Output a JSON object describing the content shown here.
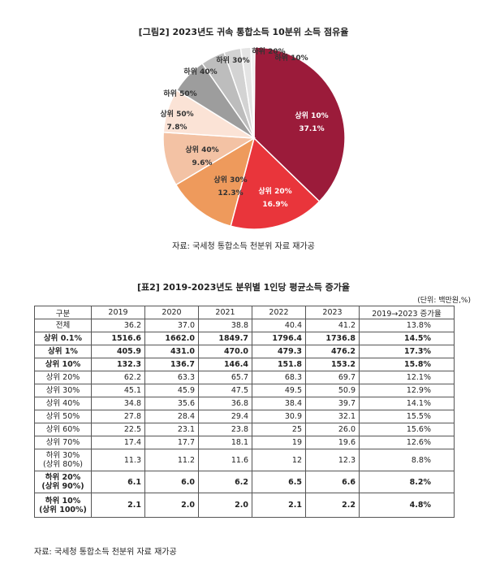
{
  "figure": {
    "title": "[그림2] 2023년도 귀속 통합소득 10분위 소득 점유율",
    "source": "자료: 국세청 통합소득 천분위 자료 재가공"
  },
  "chart_data": {
    "type": "pie",
    "slices": [
      {
        "label": "상위 10%",
        "pct_label": "37.1%",
        "value": 37.1,
        "color": "#9b1b3a"
      },
      {
        "label": "상위 20%",
        "pct_label": "16.9%",
        "value": 16.9,
        "color": "#e9353b"
      },
      {
        "label": "상위 30%",
        "pct_label": "12.3%",
        "value": 12.3,
        "color": "#ee9a5c"
      },
      {
        "label": "상위 40%",
        "pct_label": "9.6%",
        "value": 9.6,
        "color": "#f3c2a4"
      },
      {
        "label": "상위 50%",
        "pct_label": "7.8%",
        "value": 7.8,
        "color": "#fbe3d6"
      },
      {
        "label": "하위 50%",
        "pct_label": "",
        "value": 6.5,
        "color": "#9d9d9d"
      },
      {
        "label": "하위 40%",
        "pct_label": "",
        "value": 4.3,
        "color": "#bdbdbd"
      },
      {
        "label": "하위 30%",
        "pct_label": "",
        "value": 3.0,
        "color": "#d3d3d3"
      },
      {
        "label": "하위 20%",
        "pct_label": "",
        "value": 1.8,
        "color": "#e4e4e4"
      },
      {
        "label": "하위 10%",
        "pct_label": "",
        "value": 0.7,
        "color": "#f0f0f0"
      }
    ]
  },
  "table": {
    "title": "[표2] 2019-2023년도 분위별 1인당 평균소득 증가율",
    "unit": "(단위: 백만원,%)",
    "headers": [
      "구분",
      "2019",
      "2020",
      "2021",
      "2022",
      "2023",
      "2019→2023 증가율"
    ],
    "rows": [
      {
        "label": "전체",
        "values": [
          "36.2",
          "37.0",
          "38.8",
          "40.4",
          "41.2",
          "13.8%"
        ]
      },
      {
        "label": "상위 0.1%",
        "values": [
          "1516.6",
          "1662.0",
          "1849.7",
          "1796.4",
          "1736.8",
          "14.5%"
        ]
      },
      {
        "label": "상위 1%",
        "values": [
          "405.9",
          "431.0",
          "470.0",
          "479.3",
          "476.2",
          "17.3%"
        ]
      },
      {
        "label": "상위 10%",
        "values": [
          "132.3",
          "136.7",
          "146.4",
          "151.8",
          "153.2",
          "15.8%"
        ]
      },
      {
        "label": "상위 20%",
        "values": [
          "62.2",
          "63.3",
          "65.7",
          "68.3",
          "69.7",
          "12.1%"
        ]
      },
      {
        "label": "상위 30%",
        "values": [
          "45.1",
          "45.9",
          "47.5",
          "49.5",
          "50.9",
          "12.9%"
        ]
      },
      {
        "label": "상위 40%",
        "values": [
          "34.8",
          "35.6",
          "36.8",
          "38.4",
          "39.7",
          "14.1%"
        ]
      },
      {
        "label": "상위 50%",
        "values": [
          "27.8",
          "28.4",
          "29.4",
          "30.9",
          "32.1",
          "15.5%"
        ]
      },
      {
        "label": "상위 60%",
        "values": [
          "22.5",
          "23.1",
          "23.8",
          "25",
          "26.0",
          "15.6%"
        ]
      },
      {
        "label": "상위 70%",
        "values": [
          "17.4",
          "17.7",
          "18.1",
          "19",
          "19.6",
          "12.6%"
        ]
      },
      {
        "label": "하위 30%\n(상위 80%)",
        "values": [
          "11.3",
          "11.2",
          "11.6",
          "12",
          "12.3",
          "8.8%"
        ]
      },
      {
        "label": "하위 20%\n(상위 90%)",
        "values": [
          "6.1",
          "6.0",
          "6.2",
          "6.5",
          "6.6",
          "8.2%"
        ]
      },
      {
        "label": "하위 10%\n(상위 100%)",
        "values": [
          "2.1",
          "2.0",
          "2.0",
          "2.1",
          "2.2",
          "4.8%"
        ]
      }
    ],
    "source": "자료: 국세청 통합소득 천분위 자료 재가공"
  }
}
